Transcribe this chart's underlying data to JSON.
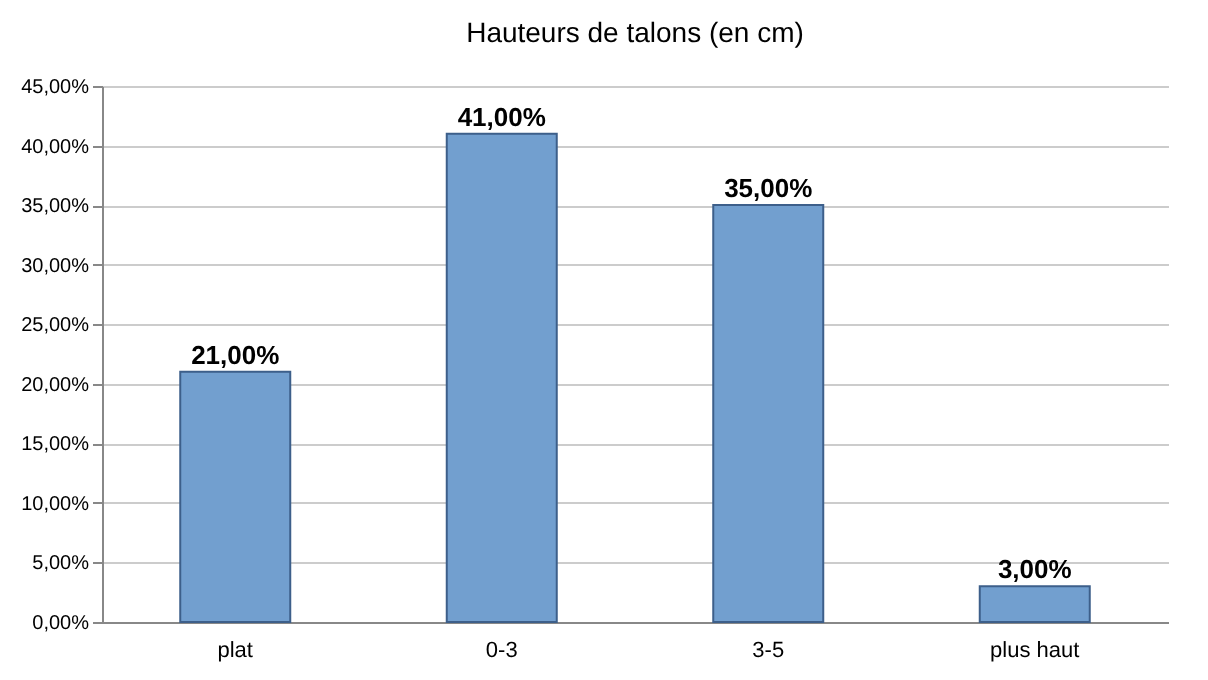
{
  "chart_data": {
    "type": "bar",
    "title": "Hauteurs de talons (en cm)",
    "categories": [
      "plat",
      "0-3",
      "3-5",
      "plus haut"
    ],
    "values": [
      21,
      41,
      35,
      3
    ],
    "value_labels": [
      "21,00%",
      "41,00%",
      "35,00%",
      "3,00%"
    ],
    "color": "#729fcf",
    "ylim": [
      0,
      45
    ],
    "yticks": [
      {
        "value": 0,
        "label": "0,00%"
      },
      {
        "value": 5,
        "label": "5,00%"
      },
      {
        "value": 10,
        "label": "10,00%"
      },
      {
        "value": 15,
        "label": "15,00%"
      },
      {
        "value": 20,
        "label": "20,00%"
      },
      {
        "value": 25,
        "label": "25,00%"
      },
      {
        "value": 30,
        "label": "30,00%"
      },
      {
        "value": 35,
        "label": "35,00%"
      },
      {
        "value": 40,
        "label": "40,00%"
      },
      {
        "value": 45,
        "label": "45,00%"
      }
    ],
    "grid": "y"
  }
}
